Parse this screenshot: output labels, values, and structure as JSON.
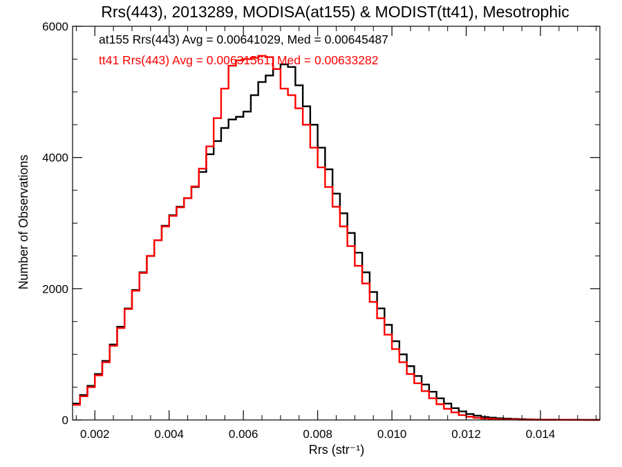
{
  "chart_data": {
    "type": "line",
    "title": "Rrs(443), 2013289, MODISA(at155) & MODIST(tt41), Mesotrophic",
    "xlabel": "Rrs (str⁻¹)",
    "ylabel": "Number of Observations",
    "xlim": [
      0.0014,
      0.0156
    ],
    "ylim": [
      0,
      6000
    ],
    "x_ticks": [
      {
        "value": 0.002,
        "label": "0.002"
      },
      {
        "value": 0.004,
        "label": "0.004"
      },
      {
        "value": 0.006,
        "label": "0.006"
      },
      {
        "value": 0.008,
        "label": "0.008"
      },
      {
        "value": 0.01,
        "label": "0.010"
      },
      {
        "value": 0.012,
        "label": "0.012"
      },
      {
        "value": 0.014,
        "label": "0.014"
      }
    ],
    "y_ticks": [
      {
        "value": 0,
        "label": "0"
      },
      {
        "value": 2000,
        "label": "2000"
      },
      {
        "value": 4000,
        "label": "4000"
      },
      {
        "value": 6000,
        "label": "6000"
      }
    ],
    "grid": false,
    "legend_position": "top-left",
    "annotations": [
      {
        "text": "at155 Rrs(443) Avg = 0.00641029, Med = 0.00645487",
        "color": "#000000"
      },
      {
        "text": "tt41 Rrs(443) Avg = 0.00631561, Med = 0.00633282",
        "color": "#ff0000"
      }
    ],
    "series": [
      {
        "color": "#000000",
        "points": [
          [
            0.0014,
            250
          ],
          [
            0.0016,
            380
          ],
          [
            0.0018,
            520
          ],
          [
            0.002,
            700
          ],
          [
            0.0022,
            900
          ],
          [
            0.0024,
            1150
          ],
          [
            0.0026,
            1420
          ],
          [
            0.0028,
            1700
          ],
          [
            0.003,
            1980
          ],
          [
            0.0032,
            2250
          ],
          [
            0.0034,
            2500
          ],
          [
            0.0036,
            2740
          ],
          [
            0.0038,
            2960
          ],
          [
            0.004,
            3120
          ],
          [
            0.0042,
            3250
          ],
          [
            0.0044,
            3380
          ],
          [
            0.0046,
            3550
          ],
          [
            0.0048,
            3780
          ],
          [
            0.005,
            4050
          ],
          [
            0.0052,
            4250
          ],
          [
            0.0054,
            4450
          ],
          [
            0.0056,
            4580
          ],
          [
            0.0058,
            4620
          ],
          [
            0.006,
            4700
          ],
          [
            0.0062,
            4950
          ],
          [
            0.0064,
            5150
          ],
          [
            0.0066,
            5250
          ],
          [
            0.0068,
            5350
          ],
          [
            0.007,
            5420
          ],
          [
            0.0072,
            5380
          ],
          [
            0.0074,
            5100
          ],
          [
            0.0076,
            4780
          ],
          [
            0.0078,
            4500
          ],
          [
            0.008,
            4150
          ],
          [
            0.0082,
            3820
          ],
          [
            0.0084,
            3450
          ],
          [
            0.0086,
            3150
          ],
          [
            0.0088,
            2850
          ],
          [
            0.009,
            2550
          ],
          [
            0.0092,
            2250
          ],
          [
            0.0094,
            1950
          ],
          [
            0.0096,
            1700
          ],
          [
            0.0098,
            1450
          ],
          [
            0.01,
            1200
          ],
          [
            0.0102,
            1000
          ],
          [
            0.0104,
            820
          ],
          [
            0.0106,
            670
          ],
          [
            0.0108,
            540
          ],
          [
            0.011,
            430
          ],
          [
            0.0112,
            330
          ],
          [
            0.0114,
            250
          ],
          [
            0.0116,
            180
          ],
          [
            0.0118,
            130
          ],
          [
            0.012,
            90
          ],
          [
            0.0122,
            65
          ],
          [
            0.0124,
            45
          ],
          [
            0.0126,
            35
          ],
          [
            0.0128,
            25
          ],
          [
            0.013,
            20
          ],
          [
            0.0132,
            15
          ],
          [
            0.0134,
            12
          ],
          [
            0.0136,
            8
          ],
          [
            0.0138,
            6
          ],
          [
            0.014,
            4
          ],
          [
            0.0144,
            3
          ],
          [
            0.0148,
            2
          ],
          [
            0.0152,
            1
          ],
          [
            0.0156,
            1
          ]
        ]
      },
      {
        "color": "#ff0000",
        "points": [
          [
            0.0014,
            230
          ],
          [
            0.0016,
            360
          ],
          [
            0.0018,
            500
          ],
          [
            0.002,
            680
          ],
          [
            0.0022,
            880
          ],
          [
            0.0024,
            1130
          ],
          [
            0.0026,
            1400
          ],
          [
            0.0028,
            1690
          ],
          [
            0.003,
            1970
          ],
          [
            0.0032,
            2240
          ],
          [
            0.0034,
            2500
          ],
          [
            0.0036,
            2740
          ],
          [
            0.0038,
            2950
          ],
          [
            0.004,
            3110
          ],
          [
            0.0042,
            3240
          ],
          [
            0.0044,
            3380
          ],
          [
            0.0046,
            3560
          ],
          [
            0.0048,
            3830
          ],
          [
            0.005,
            4170
          ],
          [
            0.0052,
            4600
          ],
          [
            0.0054,
            5050
          ],
          [
            0.0056,
            5400
          ],
          [
            0.0058,
            5480
          ],
          [
            0.006,
            5500
          ],
          [
            0.0062,
            5520
          ],
          [
            0.0064,
            5550
          ],
          [
            0.0066,
            5530
          ],
          [
            0.0068,
            5350
          ],
          [
            0.007,
            5050
          ],
          [
            0.0072,
            4950
          ],
          [
            0.0074,
            4750
          ],
          [
            0.0076,
            4500
          ],
          [
            0.0078,
            4150
          ],
          [
            0.008,
            3850
          ],
          [
            0.0082,
            3550
          ],
          [
            0.0084,
            3250
          ],
          [
            0.0086,
            2950
          ],
          [
            0.0088,
            2650
          ],
          [
            0.009,
            2350
          ],
          [
            0.0092,
            2080
          ],
          [
            0.0094,
            1800
          ],
          [
            0.0096,
            1550
          ],
          [
            0.0098,
            1300
          ],
          [
            0.01,
            1080
          ],
          [
            0.0102,
            880
          ],
          [
            0.0104,
            700
          ],
          [
            0.0106,
            560
          ],
          [
            0.0108,
            440
          ],
          [
            0.011,
            330
          ],
          [
            0.0112,
            240
          ],
          [
            0.0114,
            170
          ],
          [
            0.0116,
            115
          ],
          [
            0.0118,
            75
          ],
          [
            0.012,
            50
          ],
          [
            0.0122,
            32
          ],
          [
            0.0124,
            22
          ],
          [
            0.0126,
            15
          ],
          [
            0.0128,
            10
          ],
          [
            0.013,
            7
          ],
          [
            0.0134,
            4
          ],
          [
            0.0138,
            3
          ],
          [
            0.0142,
            2
          ],
          [
            0.0148,
            1
          ],
          [
            0.0156,
            1
          ]
        ]
      }
    ]
  }
}
